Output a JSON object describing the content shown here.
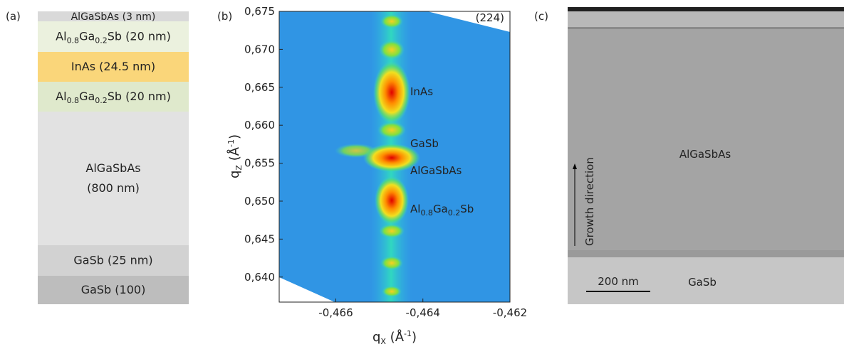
{
  "panel_a": {
    "label": "(a)",
    "layers": [
      {
        "lines": [
          [
            "AlGaSbAs (3 nm)"
          ]
        ]
      },
      {
        "lines": [
          [
            "Al",
            "0.8",
            "Ga",
            "0.2",
            "Sb (20 nm)"
          ]
        ]
      },
      {
        "lines": [
          [
            "InAs (24.5 nm)"
          ]
        ]
      },
      {
        "lines": [
          [
            "Al",
            "0.8",
            "Ga",
            "0.2",
            "Sb (20 nm)"
          ]
        ]
      },
      {
        "lines": [
          [
            "AlGaSbAs"
          ],
          [
            "(800 nm)"
          ]
        ]
      },
      {
        "lines": [
          [
            "GaSb (25 nm)"
          ]
        ]
      },
      {
        "lines": [
          [
            "GaSb (100)"
          ]
        ]
      }
    ]
  },
  "panel_b": {
    "label": "(b)",
    "corner_label": "(224)",
    "x_label": [
      "q",
      "X",
      " (Å",
      "-1",
      ")"
    ],
    "y_label": [
      "q",
      "Z",
      " (Å",
      "-1",
      ")"
    ],
    "xlim": [
      -0.4673,
      -0.462
    ],
    "ylim": [
      0.6367,
      0.675
    ],
    "xticks": [
      {
        "value": -0.466,
        "label": "-0,466"
      },
      {
        "value": -0.464,
        "label": "-0,464"
      },
      {
        "value": -0.462,
        "label": "-0,462"
      }
    ],
    "yticks": [
      {
        "value": 0.64,
        "label": "0,640"
      },
      {
        "value": 0.645,
        "label": "0,645"
      },
      {
        "value": 0.65,
        "label": "0,650"
      },
      {
        "value": 0.655,
        "label": "0,655"
      },
      {
        "value": 0.66,
        "label": "0,660"
      },
      {
        "value": 0.665,
        "label": "0,665"
      },
      {
        "value": 0.67,
        "label": "0,670"
      },
      {
        "value": 0.675,
        "label": "0,675"
      }
    ],
    "annotations": [
      [
        "InAs"
      ],
      [
        "GaSb"
      ],
      [
        "AlGaSbAs"
      ],
      [
        "Al",
        "0.8",
        "Ga",
        "0.2",
        "Sb"
      ]
    ]
  },
  "panel_c": {
    "label": "(c)",
    "layer_label": "AlGaSbAs",
    "substrate_label": "GaSb",
    "direction_label": "Growth direction",
    "scale_label": "200 nm"
  }
}
